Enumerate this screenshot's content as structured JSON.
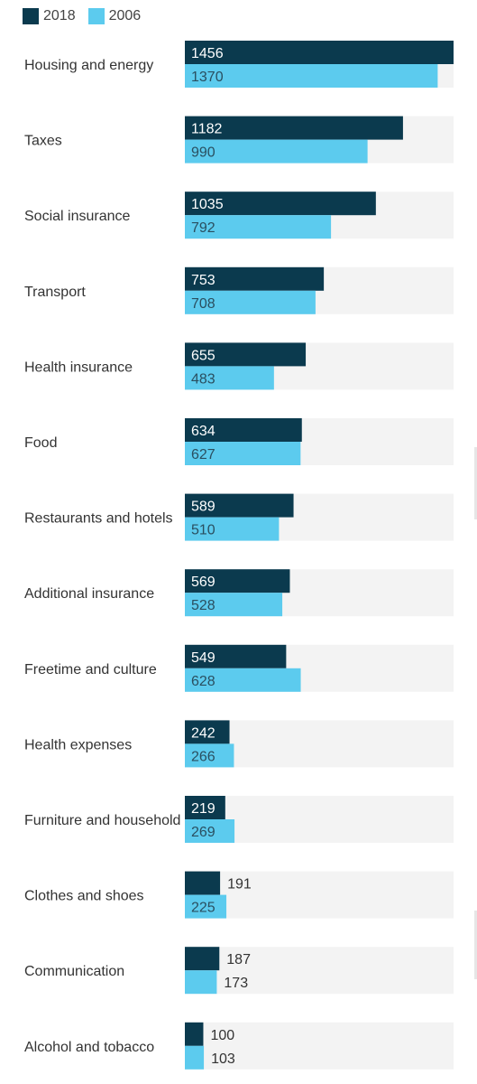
{
  "chart_data": {
    "type": "bar",
    "orientation": "horizontal",
    "xlim": [
      0,
      1456
    ],
    "categories": [
      "Housing and energy",
      "Taxes",
      "Social insurance",
      "Transport",
      "Health insurance",
      "Food",
      "Restaurants and hotels",
      "Additional insurance",
      "Freetime and culture",
      "Health expenses",
      "Furniture and household",
      "Clothes and shoes",
      "Communication",
      "Alcohol and tobacco"
    ],
    "series": [
      {
        "name": "2018",
        "color": "#0b3a4e",
        "values": [
          1456,
          1182,
          1035,
          753,
          655,
          634,
          589,
          569,
          549,
          242,
          219,
          191,
          187,
          100
        ]
      },
      {
        "name": "2006",
        "color": "#5ccbee",
        "values": [
          1370,
          990,
          792,
          708,
          483,
          627,
          510,
          528,
          628,
          266,
          269,
          225,
          173,
          103
        ]
      }
    ],
    "track_color": "#f3f3f3"
  }
}
